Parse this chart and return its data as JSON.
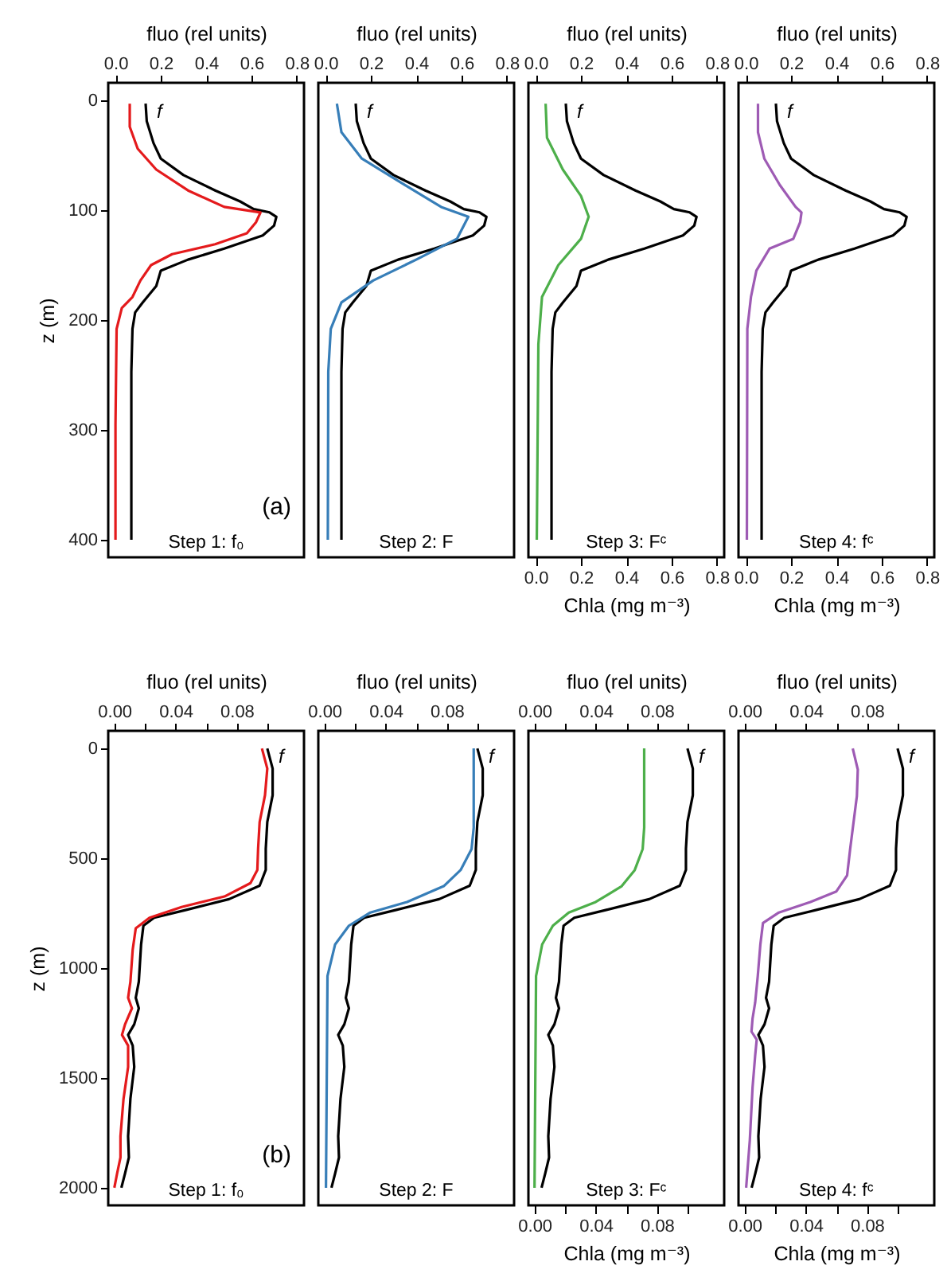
{
  "chart_data": [
    {
      "type": "line",
      "xlabel": "fluo (rel units)",
      "ylabel": "z (m)",
      "xlim": [
        -0.032,
        0.832
      ],
      "xticks": [
        {
          "value": 0,
          "label": "0.0"
        },
        {
          "value": 0.2,
          "label": "0.2"
        },
        {
          "value": 0.4,
          "label": "0.4"
        },
        {
          "value": 0.6,
          "label": "0.6"
        },
        {
          "value": 0.8,
          "label": "0.8"
        }
      ],
      "ylim": [
        416,
        -16
      ],
      "yticks": [
        0,
        100,
        200,
        300,
        400
      ],
      "annotations": [
        "(a)",
        "Step 1:  f₀"
      ],
      "series": [
        {
          "name": "f",
          "color": "#000000",
          "x": [
            0.133,
            0.138,
            0.168,
            0.2,
            0.3,
            0.44,
            0.55,
            0.61,
            0.68,
            0.71,
            0.7,
            0.65,
            0.48,
            0.32,
            0.2,
            0.18,
            0.12,
            0.087,
            0.075,
            0.07,
            0.07
          ],
          "values": [
            3,
            19,
            39,
            53,
            68,
            82,
            92,
            99,
            102,
            106,
            114,
            123,
            135,
            145,
            155,
            169,
            184,
            193,
            208,
            247,
            400
          ]
        },
        {
          "color": "#e41a1c",
          "x": [
            0.063,
            0.063,
            0.098,
            0.18,
            0.32,
            0.48,
            0.64,
            0.62,
            0.58,
            0.44,
            0.25,
            0.157,
            0.11,
            0.075,
            0.028,
            0.005,
            0.0,
            0.0
          ],
          "values": [
            3,
            24,
            44,
            63,
            82,
            97,
            102,
            111,
            121,
            131,
            140,
            150,
            164,
            179,
            189,
            208,
            295,
            400
          ]
        }
      ]
    },
    {
      "type": "line",
      "xlabel": "fluo (rel units)",
      "xlim": [
        -0.032,
        0.832
      ],
      "xticks": [
        {
          "value": 0,
          "label": "0.0"
        },
        {
          "value": 0.2,
          "label": "0.2"
        },
        {
          "value": 0.4,
          "label": "0.4"
        },
        {
          "value": 0.6,
          "label": "0.6"
        },
        {
          "value": 0.8,
          "label": "0.8"
        }
      ],
      "ylim": [
        416,
        -16
      ],
      "yticks": [
        0,
        100,
        200,
        300,
        400
      ],
      "tick_labels": "x",
      "annotations": [
        "Step 2:  F"
      ],
      "series": [
        {
          "name": "f",
          "color": "#000000",
          "x": [
            0.133,
            0.138,
            0.168,
            0.2,
            0.3,
            0.44,
            0.55,
            0.61,
            0.68,
            0.71,
            0.7,
            0.65,
            0.48,
            0.32,
            0.2,
            0.18,
            0.12,
            0.087,
            0.075,
            0.07,
            0.07
          ],
          "values": [
            3,
            19,
            39,
            53,
            68,
            82,
            92,
            99,
            102,
            106,
            114,
            123,
            135,
            145,
            155,
            169,
            184,
            193,
            208,
            247,
            400
          ]
        },
        {
          "color": "#377eb8",
          "x": [
            0.05,
            0.07,
            0.16,
            0.35,
            0.51,
            0.63,
            0.58,
            0.4,
            0.21,
            0.07,
            0.023,
            0.012,
            0.01
          ],
          "values": [
            3,
            29,
            53,
            77,
            97,
            106,
            126,
            145,
            164,
            184,
            208,
            247,
            400
          ]
        }
      ]
    },
    {
      "type": "line",
      "xlabel": "Chla (mg m⁻³)",
      "x2label": "fluo (rel units)",
      "xlim": [
        -0.032,
        0.832
      ],
      "xticks": [
        {
          "value": 0,
          "label": "0.0"
        },
        {
          "value": 0.2,
          "label": "0.2"
        },
        {
          "value": 0.4,
          "label": "0.4"
        },
        {
          "value": 0.6,
          "label": "0.6"
        },
        {
          "value": 0.8,
          "label": "0.8"
        }
      ],
      "x2lim": [
        -0.032,
        0.832
      ],
      "x2ticks": [
        {
          "value": 0,
          "label": "0.0"
        },
        {
          "value": 0.2,
          "label": "0.2"
        },
        {
          "value": 0.4,
          "label": "0.4"
        },
        {
          "value": 0.6,
          "label": "0.6"
        },
        {
          "value": 0.8,
          "label": "0.8"
        }
      ],
      "ylim": [
        416,
        -16
      ],
      "yticks": [
        0,
        100,
        200,
        300,
        400
      ],
      "tick_labels": "x",
      "annotations": [
        "Step 3:  Fᶜ"
      ],
      "series": [
        {
          "name": "f",
          "color": "#000000",
          "x": [
            0.133,
            0.138,
            0.168,
            0.2,
            0.3,
            0.44,
            0.55,
            0.61,
            0.68,
            0.71,
            0.7,
            0.65,
            0.48,
            0.32,
            0.2,
            0.18,
            0.12,
            0.087,
            0.075,
            0.07,
            0.07
          ],
          "values": [
            3,
            19,
            39,
            53,
            68,
            82,
            92,
            99,
            102,
            106,
            114,
            123,
            135,
            145,
            155,
            169,
            184,
            193,
            208,
            247,
            400
          ]
        },
        {
          "color": "#4daf4a",
          "x": [
            0.044,
            0.05,
            0.12,
            0.2,
            0.234,
            0.2,
            0.1,
            0.028,
            0.012,
            0.005
          ],
          "values": [
            3,
            34,
            63,
            87,
            106,
            126,
            150,
            179,
            222,
            400
          ]
        }
      ]
    },
    {
      "type": "line",
      "xlabel": "Chla (mg m⁻³)",
      "x2label": "fluo (rel units)",
      "xlim": [
        -0.032,
        0.832
      ],
      "xticks": [
        {
          "value": 0,
          "label": "0.0"
        },
        {
          "value": 0.2,
          "label": "0.2"
        },
        {
          "value": 0.4,
          "label": "0.4"
        },
        {
          "value": 0.6,
          "label": "0.6"
        },
        {
          "value": 0.8,
          "label": "0.8"
        }
      ],
      "x2lim": [
        -0.032,
        0.832
      ],
      "x2ticks": [
        {
          "value": 0,
          "label": "0.0"
        },
        {
          "value": 0.2,
          "label": "0.2"
        },
        {
          "value": 0.4,
          "label": "0.4"
        },
        {
          "value": 0.6,
          "label": "0.6"
        },
        {
          "value": 0.8,
          "label": "0.8"
        }
      ],
      "ylim": [
        416,
        -16
      ],
      "yticks": [
        0,
        100,
        200,
        300,
        400
      ],
      "tick_labels": "x",
      "annotations": [
        "Step 4:  fᶜ"
      ],
      "series": [
        {
          "name": "f",
          "color": "#000000",
          "x": [
            0.133,
            0.138,
            0.168,
            0.2,
            0.3,
            0.44,
            0.55,
            0.61,
            0.68,
            0.71,
            0.7,
            0.65,
            0.48,
            0.32,
            0.2,
            0.18,
            0.12,
            0.087,
            0.075,
            0.07,
            0.07
          ],
          "values": [
            3,
            19,
            39,
            53,
            68,
            82,
            92,
            99,
            102,
            106,
            114,
            123,
            135,
            145,
            155,
            169,
            184,
            193,
            208,
            247,
            400
          ]
        },
        {
          "color": "#9e5bb4",
          "x": [
            0.054,
            0.054,
            0.082,
            0.15,
            0.22,
            0.246,
            0.24,
            0.21,
            0.105,
            0.047,
            0.023,
            0.007,
            0.005
          ],
          "values": [
            3,
            29,
            53,
            77,
            97,
            102,
            111,
            126,
            135,
            155,
            179,
            208,
            400
          ]
        }
      ]
    },
    {
      "type": "line",
      "xlabel": "fluo (rel units)",
      "ylabel": "z (m)",
      "xlim": [
        -0.004,
        0.124
      ],
      "xticks": [
        {
          "value": 0,
          "label": "0.00"
        },
        {
          "value": 0.02,
          "label": null
        },
        {
          "value": 0.04,
          "label": "0.04"
        },
        {
          "value": 0.06,
          "label": null
        },
        {
          "value": 0.08,
          "label": "0.08"
        },
        {
          "value": 0.1,
          "label": null
        }
      ],
      "ylim": [
        2080,
        -80
      ],
      "yticks": [
        0,
        500,
        1000,
        1500,
        2000
      ],
      "annotations": [
        "(b)",
        "Step 1:  f₀"
      ],
      "series": [
        {
          "name": "f",
          "color": "#000000",
          "x": [
            0.1,
            0.1035,
            0.1035,
            0.1,
            0.099,
            0.099,
            0.095,
            0.075,
            0.047,
            0.026,
            0.019,
            0.0175,
            0.016,
            0.014,
            0.016,
            0.013,
            0.009,
            0.012,
            0.013,
            0.0105,
            0.009,
            0.0095,
            0.007,
            0.0046
          ],
          "values": [
            0,
            92,
            213,
            335,
            456,
            553,
            625,
            686,
            735,
            771,
            807,
            892,
            1062,
            1135,
            1183,
            1256,
            1304,
            1353,
            1450,
            1595,
            1765,
            1862,
            1935,
            2000
          ]
        },
        {
          "color": "#e41a1c",
          "x": [
            0.0965,
            0.1,
            0.0985,
            0.095,
            0.094,
            0.0935,
            0.089,
            0.072,
            0.044,
            0.023,
            0.014,
            0.012,
            0.0105,
            0.009,
            0.0115,
            0.007,
            0.005,
            0.009,
            0.009,
            0.006,
            0.004,
            0.004,
            0.0018,
            0.0
          ],
          "values": [
            0,
            92,
            213,
            335,
            456,
            553,
            613,
            674,
            722,
            771,
            819,
            916,
            1062,
            1135,
            1183,
            1256,
            1304,
            1353,
            1450,
            1595,
            1765,
            1862,
            1935,
            2000
          ]
        }
      ]
    },
    {
      "type": "line",
      "xlabel": "fluo (rel units)",
      "xlim": [
        -0.004,
        0.124
      ],
      "xticks": [
        {
          "value": 0,
          "label": "0.00"
        },
        {
          "value": 0.02,
          "label": null
        },
        {
          "value": 0.04,
          "label": "0.04"
        },
        {
          "value": 0.06,
          "label": null
        },
        {
          "value": 0.08,
          "label": "0.08"
        },
        {
          "value": 0.1,
          "label": null
        }
      ],
      "ylim": [
        2080,
        -80
      ],
      "yticks": [
        0,
        500,
        1000,
        1500,
        2000
      ],
      "tick_labels": "x",
      "annotations": [
        "Step 2:  F"
      ],
      "series": [
        {
          "name": "f",
          "color": "#000000",
          "x": [
            0.1,
            0.1035,
            0.1035,
            0.1,
            0.099,
            0.099,
            0.095,
            0.075,
            0.047,
            0.026,
            0.019,
            0.0175,
            0.016,
            0.014,
            0.016,
            0.013,
            0.009,
            0.012,
            0.013,
            0.0105,
            0.009,
            0.0095,
            0.007,
            0.0046
          ],
          "values": [
            0,
            92,
            213,
            335,
            456,
            553,
            625,
            686,
            735,
            771,
            807,
            892,
            1062,
            1135,
            1183,
            1256,
            1304,
            1353,
            1450,
            1595,
            1765,
            1862,
            1935,
            2000
          ]
        },
        {
          "color": "#377eb8",
          "x": [
            0.0976,
            0.0976,
            0.0962,
            0.089,
            0.078,
            0.054,
            0.03,
            0.016,
            0.007,
            0.002,
            0.001
          ],
          "values": [
            0,
            361,
            458,
            554,
            627,
            699,
            747,
            807,
            892,
            1036,
            2000
          ]
        }
      ]
    },
    {
      "type": "line",
      "xlabel": "Chla (mg m⁻³)",
      "x2label": "fluo (rel units)",
      "xlim": [
        -0.004,
        0.124
      ],
      "xticks": [
        {
          "value": 0,
          "label": "0.00"
        },
        {
          "value": 0.02,
          "label": null
        },
        {
          "value": 0.04,
          "label": "0.04"
        },
        {
          "value": 0.06,
          "label": null
        },
        {
          "value": 0.08,
          "label": "0.08"
        },
        {
          "value": 0.1,
          "label": null
        }
      ],
      "x2lim": [
        -0.004,
        0.124
      ],
      "x2ticks": [
        {
          "value": 0,
          "label": "0.00"
        },
        {
          "value": 0.02,
          "label": null
        },
        {
          "value": 0.04,
          "label": "0.04"
        },
        {
          "value": 0.06,
          "label": null
        },
        {
          "value": 0.08,
          "label": "0.08"
        },
        {
          "value": 0.1,
          "label": null
        }
      ],
      "ylim": [
        2080,
        -80
      ],
      "yticks": [
        0,
        500,
        1000,
        1500,
        2000
      ],
      "tick_labels": "x",
      "annotations": [
        "Step 3:  Fᶜ"
      ],
      "series": [
        {
          "name": "f",
          "color": "#000000",
          "x": [
            0.1,
            0.1035,
            0.1035,
            0.1,
            0.099,
            0.099,
            0.095,
            0.075,
            0.047,
            0.026,
            0.019,
            0.0175,
            0.016,
            0.014,
            0.016,
            0.013,
            0.009,
            0.012,
            0.013,
            0.0105,
            0.009,
            0.0095,
            0.007,
            0.0046
          ],
          "values": [
            0,
            92,
            213,
            335,
            456,
            553,
            625,
            686,
            735,
            771,
            807,
            892,
            1062,
            1135,
            1183,
            1256,
            1304,
            1353,
            1450,
            1595,
            1765,
            1862,
            1935,
            2000
          ]
        },
        {
          "color": "#4daf4a",
          "x": [
            0.0717,
            0.0717,
            0.0707,
            0.0655,
            0.057,
            0.04,
            0.0224,
            0.012,
            0.005,
            0.001,
            0.0
          ],
          "values": [
            0,
            361,
            458,
            554,
            627,
            699,
            747,
            807,
            892,
            1036,
            2000
          ]
        }
      ]
    },
    {
      "type": "line",
      "xlabel": "Chla (mg m⁻³)",
      "x2label": "fluo (rel units)",
      "xlim": [
        -0.004,
        0.124
      ],
      "xticks": [
        {
          "value": 0,
          "label": "0.00"
        },
        {
          "value": 0.02,
          "label": null
        },
        {
          "value": 0.04,
          "label": "0.04"
        },
        {
          "value": 0.06,
          "label": null
        },
        {
          "value": 0.08,
          "label": "0.08"
        },
        {
          "value": 0.1,
          "label": null
        }
      ],
      "x2lim": [
        -0.004,
        0.124
      ],
      "x2ticks": [
        {
          "value": 0,
          "label": "0.00"
        },
        {
          "value": 0.02,
          "label": null
        },
        {
          "value": 0.04,
          "label": "0.04"
        },
        {
          "value": 0.06,
          "label": null
        },
        {
          "value": 0.08,
          "label": "0.08"
        },
        {
          "value": 0.1,
          "label": null
        }
      ],
      "ylim": [
        2080,
        -80
      ],
      "yticks": [
        0,
        500,
        1000,
        1500,
        2000
      ],
      "tick_labels": "x",
      "annotations": [
        "Step 4:  fᶜ"
      ],
      "series": [
        {
          "name": "f",
          "color": "#000000",
          "x": [
            0.1,
            0.1035,
            0.1035,
            0.1,
            0.099,
            0.099,
            0.095,
            0.075,
            0.047,
            0.026,
            0.019,
            0.0175,
            0.016,
            0.014,
            0.016,
            0.013,
            0.009,
            0.012,
            0.013,
            0.0105,
            0.009,
            0.0095,
            0.007,
            0.0046
          ],
          "values": [
            0,
            92,
            213,
            335,
            456,
            553,
            625,
            686,
            735,
            771,
            807,
            892,
            1062,
            1135,
            1183,
            1256,
            1304,
            1353,
            1450,
            1595,
            1765,
            1862,
            1935,
            2000
          ]
        },
        {
          "color": "#9e5bb4",
          "x": [
            0.0707,
            0.074,
            0.0734,
            0.069,
            0.067,
            0.06,
            0.043,
            0.0224,
            0.012,
            0.0103,
            0.0086,
            0.0069,
            0.0052,
            0.0045,
            0.0079,
            0.0069,
            0.0052,
            0.0034,
            0.001
          ],
          "values": [
            0,
            96,
            217,
            458,
            578,
            651,
            699,
            747,
            795,
            892,
            1036,
            1157,
            1229,
            1289,
            1326,
            1398,
            1542,
            1783,
            2000
          ]
        }
      ]
    }
  ]
}
